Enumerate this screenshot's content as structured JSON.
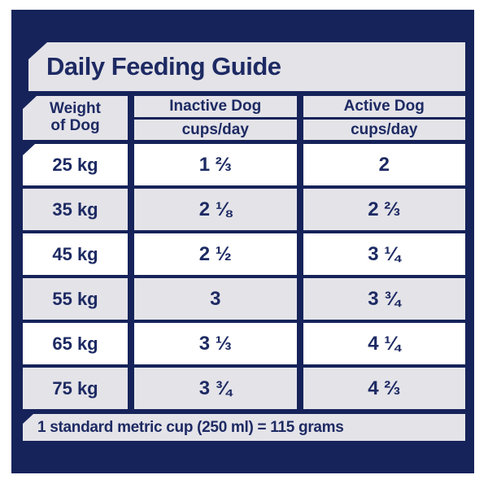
{
  "colors": {
    "panel_navy": "#16235a",
    "bar_gray": "#e4e3e8",
    "cell_white": "#ffffff",
    "text_navy": "#1d2a63",
    "page_background": "#ffffff"
  },
  "title": "Daily Feeding Guide",
  "table": {
    "weight_header": [
      "Weight",
      "of Dog"
    ],
    "columns": [
      {
        "label": "Inactive Dog",
        "unit": "cups/day"
      },
      {
        "label": "Active Dog",
        "unit": "cups/day"
      }
    ],
    "rows": [
      {
        "weight": "25 kg",
        "inactive": "1 ⅔",
        "active": "2"
      },
      {
        "weight": "35 kg",
        "inactive": "2 ⅛",
        "active": "2 ⅔"
      },
      {
        "weight": "45 kg",
        "inactive": "2 ½",
        "active": "3 ¼"
      },
      {
        "weight": "55 kg",
        "inactive": "3",
        "active": "3 ¾"
      },
      {
        "weight": "65 kg",
        "inactive": "3 ⅓",
        "active": "4 ¼"
      },
      {
        "weight": "75 kg",
        "inactive": "3 ¾",
        "active": "4 ⅔"
      }
    ]
  },
  "footnote": "1 standard metric cup (250 ml) = 115 grams",
  "chart_data": {
    "type": "table",
    "title": "Daily Feeding Guide",
    "columns": [
      "Weight of Dog",
      "Inactive Dog (cups/day)",
      "Active Dog (cups/day)"
    ],
    "rows": [
      [
        "25 kg",
        "1 2/3",
        "2"
      ],
      [
        "35 kg",
        "2 1/8",
        "2 2/3"
      ],
      [
        "45 kg",
        "2 1/2",
        "3 1/4"
      ],
      [
        "55 kg",
        "3",
        "3 3/4"
      ],
      [
        "65 kg",
        "3 1/3",
        "4 1/4"
      ],
      [
        "75 kg",
        "3 3/4",
        "4 2/3"
      ]
    ],
    "footnote": "1 standard metric cup (250 ml) = 115 grams"
  }
}
